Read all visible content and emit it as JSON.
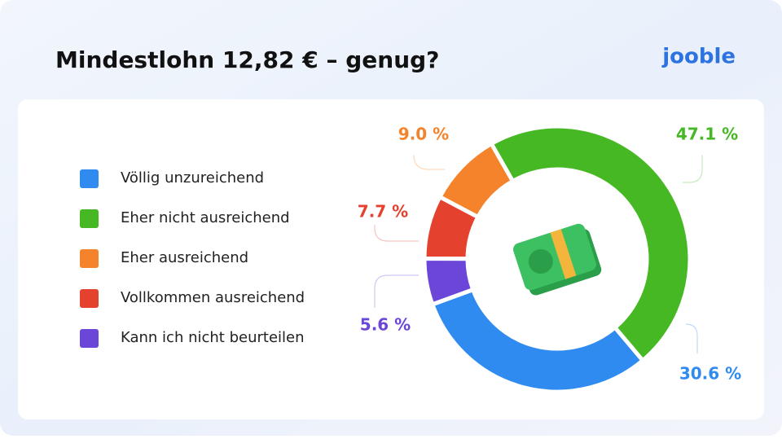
{
  "chart_data": {
    "type": "donut",
    "title": "Mindestlohn 12,82 € – genug?",
    "brand": "jooble",
    "categories": [
      "Völlig unzureichend",
      "Eher nicht ausreichend",
      "Eher ausreichend",
      "Vollkommen ausreichend",
      "Kann ich nicht beurteilen"
    ],
    "values": [
      30.6,
      47.1,
      9.0,
      7.7,
      5.6
    ],
    "value_labels": [
      "30.6 %",
      "47.1 %",
      "9.0 %",
      "7.7 %",
      "5.6 %"
    ],
    "colors": [
      "#2f8bef",
      "#45b824",
      "#f5832b",
      "#e5412f",
      "#6b46d8"
    ],
    "legend": "left"
  }
}
